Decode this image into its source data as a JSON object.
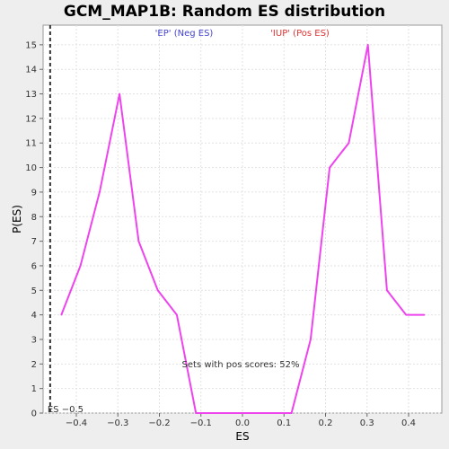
{
  "chart_data": {
    "type": "line",
    "title": "GCM_MAP1B: Random ES distribution",
    "xlabel": "ES",
    "ylabel": "P(ES)",
    "xlim": [
      -0.48,
      0.48
    ],
    "ylim": [
      0,
      15.8
    ],
    "xticks": [
      -0.4,
      -0.3,
      -0.2,
      -0.1,
      0.0,
      0.1,
      0.2,
      0.3,
      0.4
    ],
    "xtick_labels": [
      "−0.4",
      "−0.3",
      "−0.2",
      "−0.1",
      "0.0",
      "0.1",
      "0.2",
      "0.3",
      "0.4"
    ],
    "yticks": [
      0,
      1,
      2,
      3,
      4,
      5,
      6,
      7,
      8,
      9,
      10,
      11,
      12,
      13,
      14,
      15
    ],
    "ytick_labels": [
      "0",
      "1",
      "2",
      "3",
      "4",
      "5",
      "6",
      "7",
      "8",
      "9",
      "10",
      "11",
      "12",
      "13",
      "14",
      "15"
    ],
    "grid": true,
    "series": [
      {
        "color": "#ee44ee",
        "x": [
          -0.436,
          -0.39,
          -0.344,
          -0.296,
          -0.25,
          -0.204,
          -0.158,
          -0.112,
          -0.066,
          -0.02,
          0.026,
          0.072,
          0.118,
          0.164,
          0.21,
          0.256,
          0.302,
          0.348,
          0.394,
          0.438
        ],
        "y": [
          4,
          6,
          9,
          13,
          7,
          5,
          4,
          0,
          0,
          0,
          0,
          0,
          0,
          3,
          10,
          11,
          15,
          5,
          4,
          4
        ]
      }
    ],
    "legend": {
      "neg_label": "'EP' (Neg ES)",
      "neg_color": "#4444cc",
      "pos_label": "'IUP' (Pos ES)",
      "pos_color": "#dd3333"
    },
    "marker": {
      "x": -0.463,
      "label": "ES −0.5"
    },
    "annotation": "Sets with pos scores: 52%"
  }
}
